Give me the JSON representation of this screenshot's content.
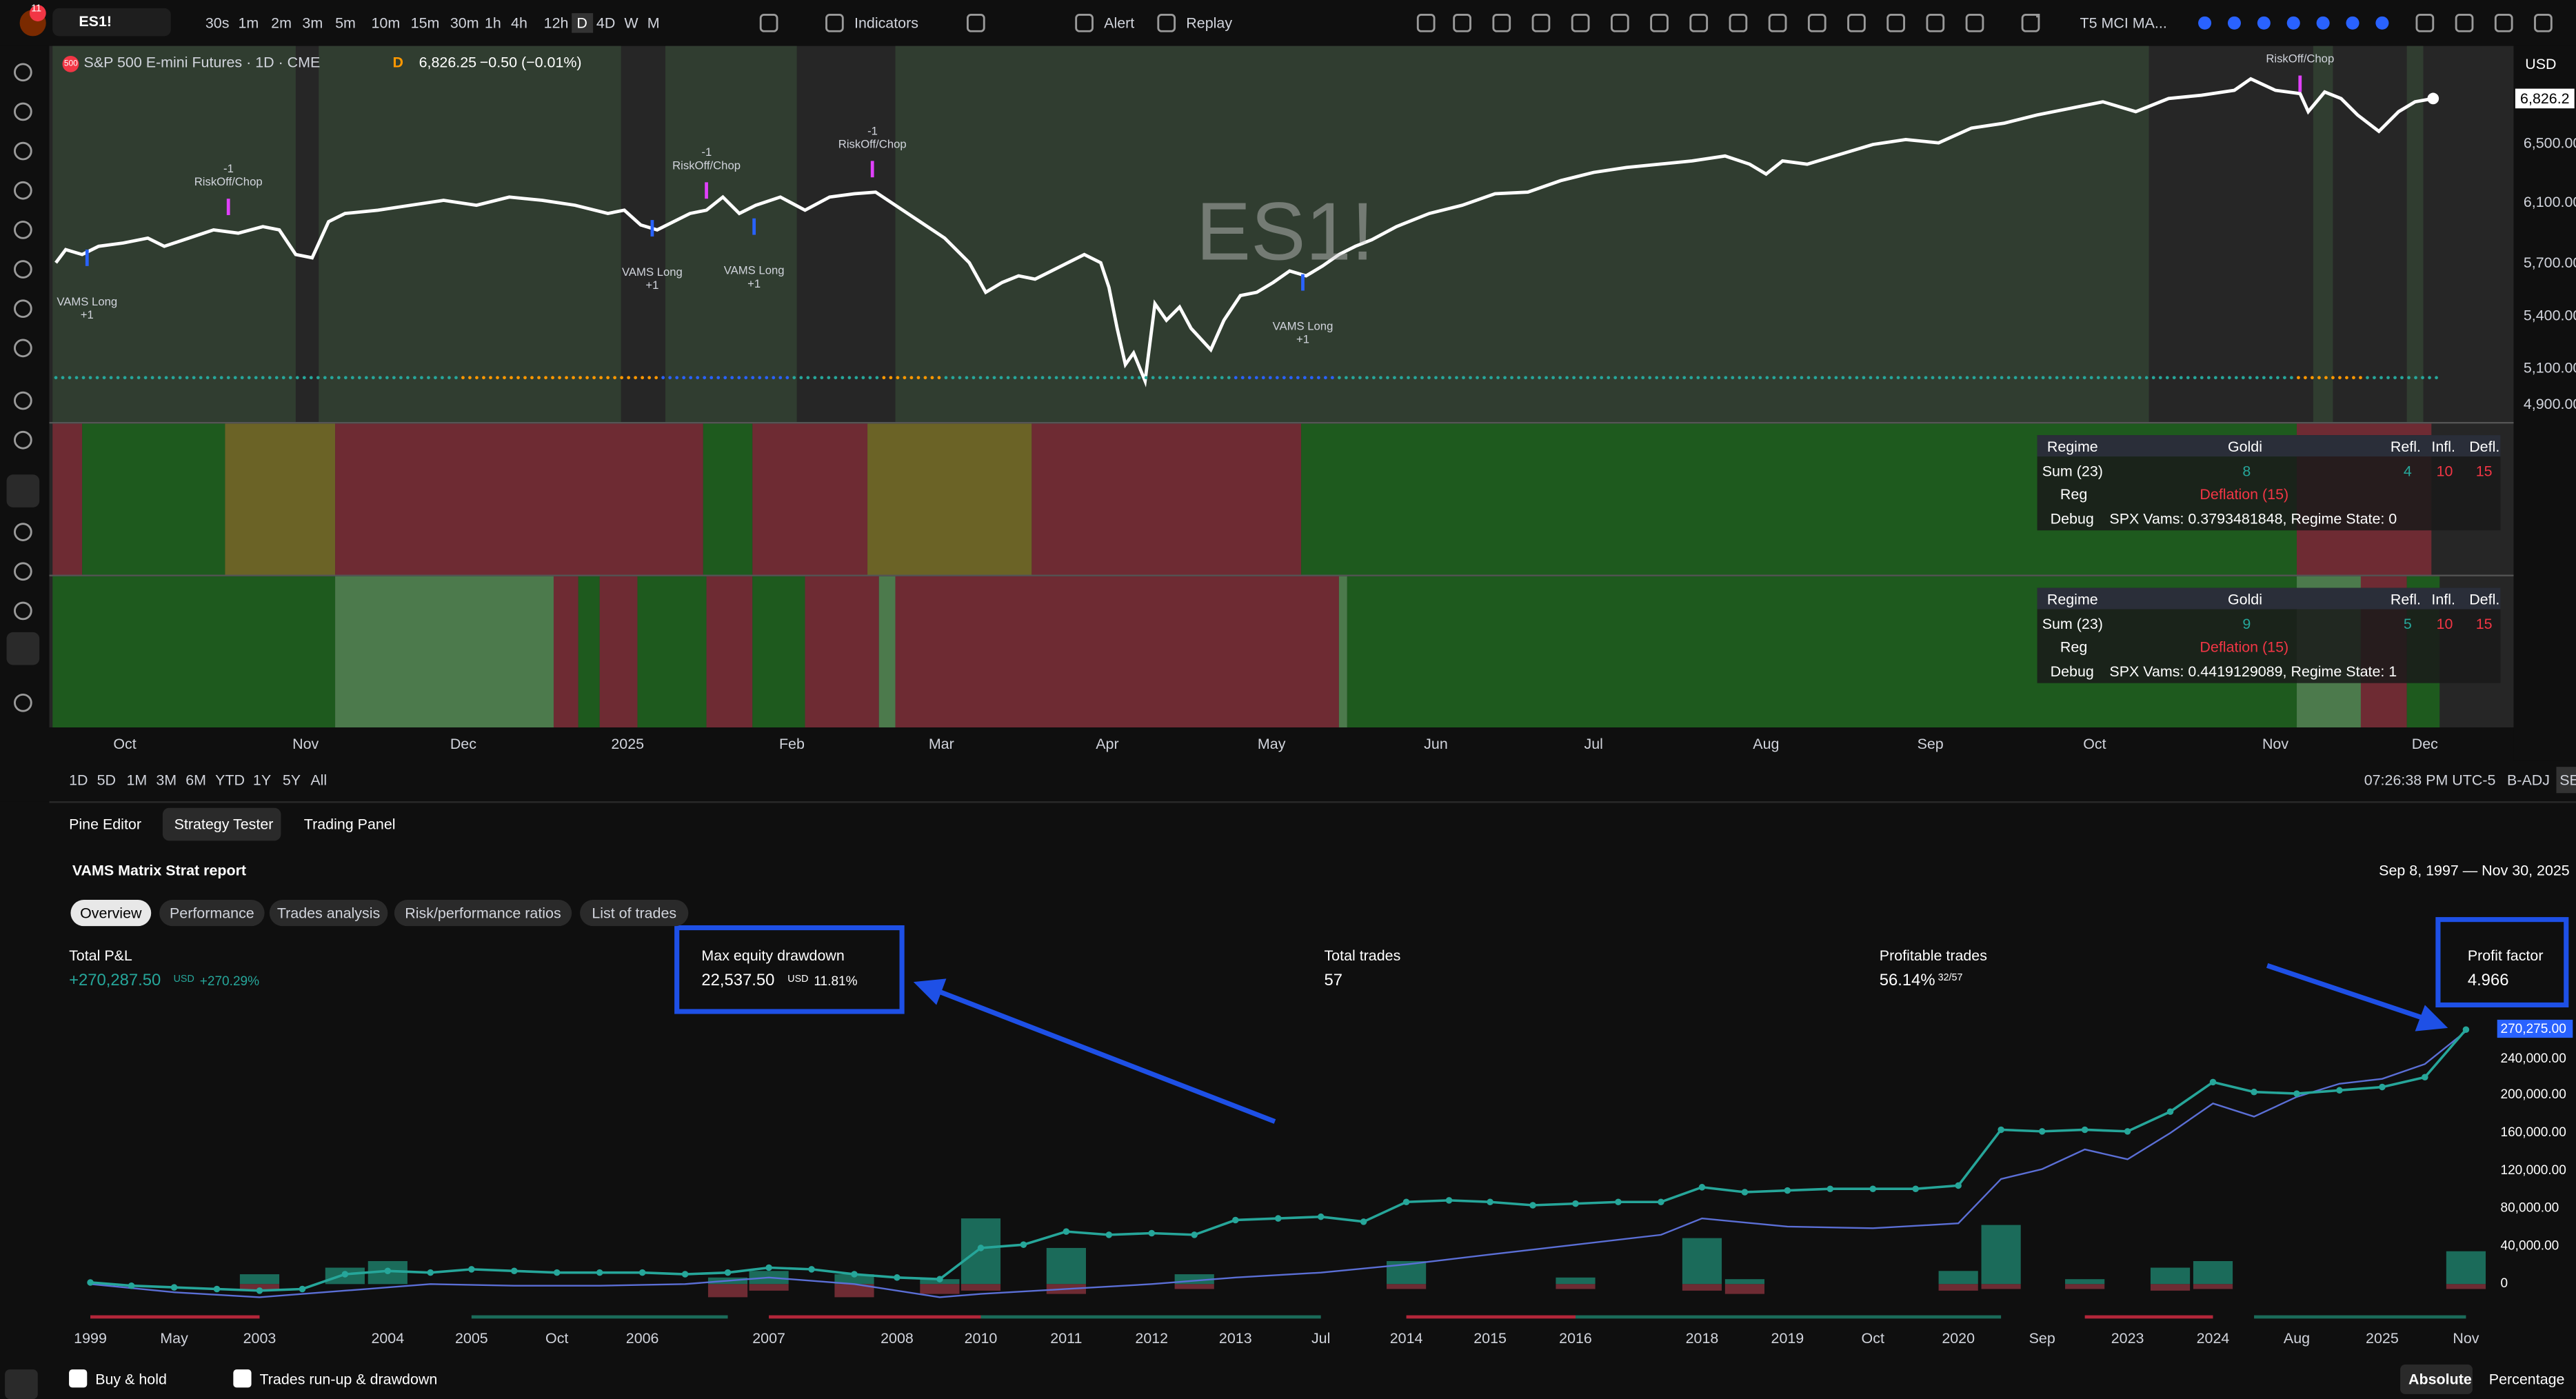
{
  "toolbar": {
    "notifications": "11",
    "symbol": "ES1!",
    "intervals": [
      "30s",
      "1m",
      "2m",
      "3m",
      "5m",
      "10m",
      "15m",
      "30m",
      "1h",
      "4h",
      "12h",
      "D",
      "4D",
      "W",
      "M"
    ],
    "indicators": "Indicators",
    "alert": "Alert",
    "replay": "Replay",
    "layout_name": "T5 MCI MA..."
  },
  "chart": {
    "symbol_badge": "500",
    "title": "S&P 500 E-mini Futures · 1D · CME",
    "interval_badge": "D",
    "price": "6,826.25",
    "change": "−0.50 (−0.01%)",
    "watermark": "ES1!",
    "currency": "USD",
    "last_price": "6,826.2",
    "price_scale": [
      "6,500.00",
      "6,100.00",
      "5,700.00",
      "5,400.00",
      "5,100.00",
      "4,900.00"
    ],
    "annotations": [
      {
        "top": "-1",
        "text": "RiskOff/Chop"
      },
      {
        "top": "-1",
        "text": "RiskOff/Chop"
      },
      {
        "top": "-1",
        "text": "RiskOff/Chop"
      },
      {
        "text": "RiskOff/Chop"
      },
      {
        "text": "VAMS Long",
        "bottom": "+1"
      },
      {
        "text": "VAMS Long",
        "bottom": "+1"
      },
      {
        "text": "VAMS Long",
        "bottom": "+1"
      },
      {
        "text": "VAMS Long",
        "bottom": "+1"
      }
    ],
    "time_axis": [
      "Oct",
      "Nov",
      "Dec",
      "2025",
      "Feb",
      "Mar",
      "Apr",
      "May",
      "Jun",
      "Jul",
      "Aug",
      "Sep",
      "Oct",
      "Nov",
      "Dec"
    ]
  },
  "tables": [
    {
      "header": [
        "Regime",
        "Goldi",
        "Refl.",
        "Infl.",
        "Defl."
      ],
      "sum": [
        "Sum (23)",
        "8",
        "4",
        "10",
        "15"
      ],
      "reg": [
        "Reg",
        "Deflation (15)"
      ],
      "debug": [
        "Debug",
        "SPX Vams: 0.3793481848, Regime State: 0"
      ]
    },
    {
      "header": [
        "Regime",
        "Goldi",
        "Refl.",
        "Infl.",
        "Defl."
      ],
      "sum": [
        "Sum (23)",
        "9",
        "5",
        "10",
        "15"
      ],
      "reg": [
        "Reg",
        "Deflation (15)"
      ],
      "debug": [
        "Debug",
        "SPX Vams: 0.4419129089, Regime State: 1"
      ]
    }
  ],
  "range_bar": {
    "ranges": [
      "1D",
      "5D",
      "1M",
      "3M",
      "6M",
      "YTD",
      "1Y",
      "5Y",
      "All"
    ],
    "clock": "07:26:38 PM UTC-5",
    "adjust": "B-ADJ",
    "settings": "SET"
  },
  "bottom_tabs": [
    "Pine Editor",
    "Strategy Tester",
    "Trading Panel"
  ],
  "report": {
    "title": "VAMS Matrix Strat report",
    "date_range": "Sep 8, 1997 — Nov 30, 2025",
    "views": [
      "Overview",
      "Performance",
      "Trades analysis",
      "Risk/performance ratios",
      "List of trades"
    ],
    "stats": [
      {
        "label": "Total P&L",
        "value": "+270,287.50",
        "unit": "USD",
        "extra": "+270.29%"
      },
      {
        "label": "Max equity drawdown",
        "value": "22,537.50",
        "unit": "USD",
        "extra": "11.81%"
      },
      {
        "label": "Total trades",
        "value": "57"
      },
      {
        "label": "Profitable trades",
        "value": "56.14%",
        "extra": "32/57"
      },
      {
        "label": "Profit factor",
        "value": "4.966"
      }
    ],
    "equity_y_labels": [
      "270,275.00",
      "240,000.00",
      "200,000.00",
      "160,000.00",
      "120,000.00",
      "80,000.00",
      "40,000.00",
      "0"
    ],
    "equity_x_labels": [
      "1999",
      "May",
      "2003",
      "2004",
      "2005",
      "Oct",
      "2006",
      "2007",
      "2008",
      "2010",
      "2011",
      "2012",
      "2013",
      "Jul",
      "2014",
      "2015",
      "2016",
      "2018",
      "2019",
      "Oct",
      "2020",
      "Sep",
      "2023",
      "2024",
      "Aug",
      "2025",
      "Nov"
    ]
  },
  "footer": {
    "buy_hold": "Buy & hold",
    "runup": "Trades run-up & drawdown",
    "absolute": "Absolute",
    "percentage": "Percentage"
  }
}
